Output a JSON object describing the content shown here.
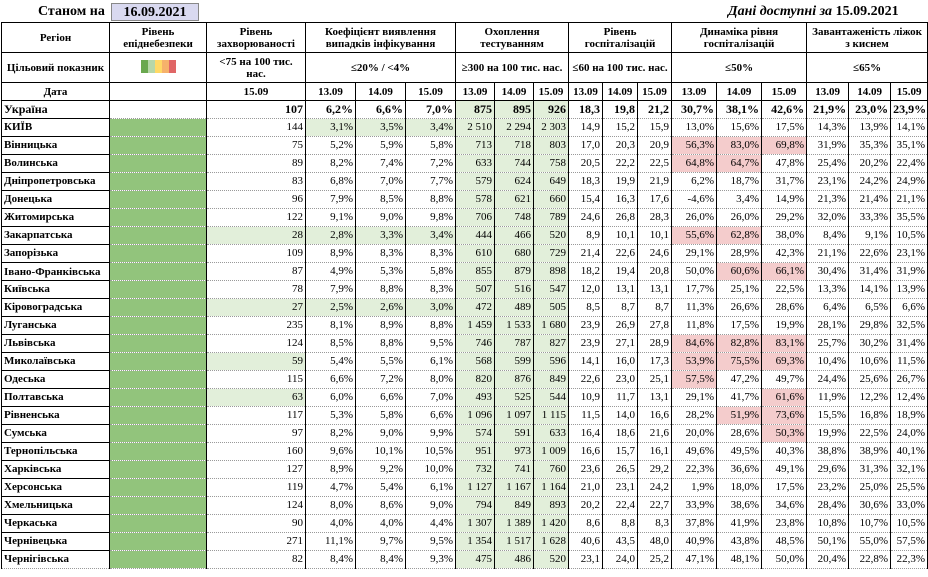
{
  "header": {
    "stanom_label": "Станом на",
    "stanom_date": "16.09.2021",
    "available_label": "Дані доступні за",
    "available_date": "15.09.2021"
  },
  "columns": {
    "region": "Регіон",
    "target": "Цільовий показник",
    "date": "Дата",
    "risk": "Рівень епіднебезпеки",
    "incidence": "Рівень захворюваності",
    "incidence_target": "<75 на 100 тис. нас.",
    "incidence_date": "15.09",
    "detection": "Коефіцієнт виявлення випадків інфікування",
    "detection_target": "≤20% / <4%",
    "testing": "Охоплення тестуванням",
    "testing_target": "≥300 на 100 тис. нас.",
    "hosp": "Рівень госпіталізацій",
    "hosp_target": "≤60 на 100 тис. нас.",
    "dyn": "Динаміка рівня госпіталізацій",
    "dyn_target": "≤50%",
    "oxy": "Завантаженість ліжок з киснем",
    "oxy_target": "≤65%",
    "d1": "13.09",
    "d2": "14.09",
    "d3": "15.09"
  },
  "risk_colors": [
    "#6aa84f",
    "#b6d7a8",
    "#ffd966",
    "#f6b26b",
    "#e06666"
  ],
  "rows": [
    {
      "region": "Україна",
      "inc": "107",
      "det": [
        "6,2%",
        "6,6%",
        "7,0%"
      ],
      "test": [
        "875",
        "895",
        "926"
      ],
      "hosp": [
        "18,3",
        "19,8",
        "21,2"
      ],
      "dyn": [
        "30,7%",
        "38,1%",
        "42,6%"
      ],
      "oxy": [
        "21,9%",
        "23,0%",
        "23,9%"
      ]
    },
    {
      "region": "КИЇВ",
      "inc": "144",
      "det": [
        "3,1%",
        "3,5%",
        "3,4%"
      ],
      "test": [
        "2 510",
        "2 294",
        "2 303"
      ],
      "hosp": [
        "14,9",
        "15,2",
        "15,9"
      ],
      "dyn": [
        "13,0%",
        "15,6%",
        "17,5%"
      ],
      "oxy": [
        "14,3%",
        "13,9%",
        "14,1%"
      ]
    },
    {
      "region": "Вінницька",
      "inc": "75",
      "det": [
        "5,2%",
        "5,9%",
        "5,8%"
      ],
      "test": [
        "713",
        "718",
        "803"
      ],
      "hosp": [
        "17,0",
        "20,3",
        "20,9"
      ],
      "dyn": [
        "56,3%",
        "83,0%",
        "69,8%"
      ],
      "oxy": [
        "31,9%",
        "35,3%",
        "35,1%"
      ]
    },
    {
      "region": "Волинська",
      "inc": "89",
      "det": [
        "8,2%",
        "7,4%",
        "7,2%"
      ],
      "test": [
        "633",
        "744",
        "758"
      ],
      "hosp": [
        "20,5",
        "22,2",
        "22,5"
      ],
      "dyn": [
        "64,8%",
        "64,7%",
        "47,8%"
      ],
      "oxy": [
        "25,4%",
        "20,2%",
        "22,4%"
      ]
    },
    {
      "region": "Дніпропетровська",
      "inc": "83",
      "det": [
        "6,8%",
        "7,0%",
        "7,7%"
      ],
      "test": [
        "579",
        "624",
        "649"
      ],
      "hosp": [
        "18,3",
        "19,9",
        "21,9"
      ],
      "dyn": [
        "6,2%",
        "18,7%",
        "31,7%"
      ],
      "oxy": [
        "23,1%",
        "24,2%",
        "24,9%"
      ]
    },
    {
      "region": "Донецька",
      "inc": "96",
      "det": [
        "7,9%",
        "8,5%",
        "8,8%"
      ],
      "test": [
        "578",
        "621",
        "660"
      ],
      "hosp": [
        "15,4",
        "16,3",
        "17,6"
      ],
      "dyn": [
        "-4,6%",
        "3,4%",
        "14,9%"
      ],
      "oxy": [
        "21,3%",
        "21,4%",
        "21,1%"
      ]
    },
    {
      "region": "Житомирська",
      "inc": "122",
      "det": [
        "9,1%",
        "9,0%",
        "9,8%"
      ],
      "test": [
        "706",
        "748",
        "789"
      ],
      "hosp": [
        "24,6",
        "26,8",
        "28,3"
      ],
      "dyn": [
        "26,0%",
        "26,0%",
        "29,2%"
      ],
      "oxy": [
        "32,0%",
        "33,3%",
        "35,5%"
      ]
    },
    {
      "region": "Закарпатська",
      "inc": "28",
      "det": [
        "2,8%",
        "3,3%",
        "3,4%"
      ],
      "test": [
        "444",
        "466",
        "520"
      ],
      "hosp": [
        "8,9",
        "10,1",
        "10,1"
      ],
      "dyn": [
        "55,6%",
        "62,8%",
        "38,0%"
      ],
      "oxy": [
        "8,4%",
        "9,1%",
        "10,5%"
      ]
    },
    {
      "region": "Запорізька",
      "inc": "109",
      "det": [
        "8,9%",
        "8,3%",
        "8,3%"
      ],
      "test": [
        "610",
        "680",
        "729"
      ],
      "hosp": [
        "21,4",
        "22,6",
        "24,6"
      ],
      "dyn": [
        "29,1%",
        "28,9%",
        "42,3%"
      ],
      "oxy": [
        "21,1%",
        "22,6%",
        "23,1%"
      ]
    },
    {
      "region": "Івано-Франківська",
      "inc": "87",
      "det": [
        "4,9%",
        "5,3%",
        "5,8%"
      ],
      "test": [
        "855",
        "879",
        "898"
      ],
      "hosp": [
        "18,2",
        "19,4",
        "20,8"
      ],
      "dyn": [
        "50,0%",
        "60,6%",
        "66,1%"
      ],
      "oxy": [
        "30,4%",
        "31,4%",
        "31,9%"
      ]
    },
    {
      "region": "Київська",
      "inc": "78",
      "det": [
        "7,9%",
        "8,8%",
        "8,3%"
      ],
      "test": [
        "507",
        "516",
        "547"
      ],
      "hosp": [
        "12,0",
        "13,1",
        "13,1"
      ],
      "dyn": [
        "17,7%",
        "25,1%",
        "22,5%"
      ],
      "oxy": [
        "13,3%",
        "14,1%",
        "13,9%"
      ]
    },
    {
      "region": "Кіровоградська",
      "inc": "27",
      "det": [
        "2,5%",
        "2,6%",
        "3,0%"
      ],
      "test": [
        "472",
        "489",
        "505"
      ],
      "hosp": [
        "8,5",
        "8,7",
        "8,7"
      ],
      "dyn": [
        "11,3%",
        "26,6%",
        "28,6%"
      ],
      "oxy": [
        "6,4%",
        "6,5%",
        "6,6%"
      ]
    },
    {
      "region": "Луганська",
      "inc": "235",
      "det": [
        "8,1%",
        "8,9%",
        "8,8%"
      ],
      "test": [
        "1 459",
        "1 533",
        "1 680"
      ],
      "hosp": [
        "23,9",
        "26,9",
        "27,8"
      ],
      "dyn": [
        "11,8%",
        "17,5%",
        "19,9%"
      ],
      "oxy": [
        "28,1%",
        "29,8%",
        "32,5%"
      ]
    },
    {
      "region": "Львівська",
      "inc": "124",
      "det": [
        "8,5%",
        "8,8%",
        "9,5%"
      ],
      "test": [
        "746",
        "787",
        "827"
      ],
      "hosp": [
        "23,9",
        "27,1",
        "28,9"
      ],
      "dyn": [
        "84,6%",
        "82,8%",
        "83,1%"
      ],
      "oxy": [
        "25,7%",
        "30,2%",
        "31,4%"
      ]
    },
    {
      "region": "Миколаївська",
      "inc": "59",
      "det": [
        "5,4%",
        "5,5%",
        "6,1%"
      ],
      "test": [
        "568",
        "599",
        "596"
      ],
      "hosp": [
        "14,1",
        "16,0",
        "17,3"
      ],
      "dyn": [
        "53,9%",
        "75,5%",
        "69,3%"
      ],
      "oxy": [
        "10,4%",
        "10,6%",
        "11,5%"
      ]
    },
    {
      "region": "Одеська",
      "inc": "115",
      "det": [
        "6,6%",
        "7,2%",
        "8,0%"
      ],
      "test": [
        "820",
        "876",
        "849"
      ],
      "hosp": [
        "22,6",
        "23,0",
        "25,1"
      ],
      "dyn": [
        "57,5%",
        "47,2%",
        "49,7%"
      ],
      "oxy": [
        "24,4%",
        "25,6%",
        "26,7%"
      ]
    },
    {
      "region": "Полтавська",
      "inc": "63",
      "det": [
        "6,0%",
        "6,6%",
        "7,0%"
      ],
      "test": [
        "493",
        "525",
        "544"
      ],
      "hosp": [
        "10,9",
        "11,7",
        "13,1"
      ],
      "dyn": [
        "29,1%",
        "41,7%",
        "61,6%"
      ],
      "oxy": [
        "11,9%",
        "12,2%",
        "12,4%"
      ]
    },
    {
      "region": "Рівненська",
      "inc": "117",
      "det": [
        "5,3%",
        "5,8%",
        "6,6%"
      ],
      "test": [
        "1 096",
        "1 097",
        "1 115"
      ],
      "hosp": [
        "11,5",
        "14,0",
        "16,6"
      ],
      "dyn": [
        "28,2%",
        "51,9%",
        "73,6%"
      ],
      "oxy": [
        "15,5%",
        "16,8%",
        "18,9%"
      ]
    },
    {
      "region": "Сумська",
      "inc": "97",
      "det": [
        "8,2%",
        "9,0%",
        "9,9%"
      ],
      "test": [
        "574",
        "591",
        "633"
      ],
      "hosp": [
        "16,4",
        "18,6",
        "21,6"
      ],
      "dyn": [
        "20,0%",
        "28,6%",
        "50,3%"
      ],
      "oxy": [
        "19,9%",
        "22,5%",
        "24,0%"
      ]
    },
    {
      "region": "Тернопільська",
      "inc": "160",
      "det": [
        "9,6%",
        "10,1%",
        "10,5%"
      ],
      "test": [
        "951",
        "973",
        "1 009"
      ],
      "hosp": [
        "16,6",
        "15,7",
        "16,1"
      ],
      "dyn": [
        "49,6%",
        "49,5%",
        "40,3%"
      ],
      "oxy": [
        "38,8%",
        "38,9%",
        "40,1%"
      ]
    },
    {
      "region": "Харківська",
      "inc": "127",
      "det": [
        "8,9%",
        "9,2%",
        "10,0%"
      ],
      "test": [
        "732",
        "741",
        "760"
      ],
      "hosp": [
        "23,6",
        "26,5",
        "29,2"
      ],
      "dyn": [
        "22,3%",
        "36,6%",
        "49,1%"
      ],
      "oxy": [
        "29,6%",
        "31,3%",
        "32,1%"
      ]
    },
    {
      "region": "Херсонська",
      "inc": "119",
      "det": [
        "4,7%",
        "5,4%",
        "6,1%"
      ],
      "test": [
        "1 127",
        "1 167",
        "1 164"
      ],
      "hosp": [
        "21,0",
        "23,1",
        "24,2"
      ],
      "dyn": [
        "1,9%",
        "18,0%",
        "17,5%"
      ],
      "oxy": [
        "23,2%",
        "25,0%",
        "25,5%"
      ]
    },
    {
      "region": "Хмельницька",
      "inc": "124",
      "det": [
        "8,0%",
        "8,6%",
        "9,0%"
      ],
      "test": [
        "794",
        "849",
        "893"
      ],
      "hosp": [
        "20,2",
        "22,4",
        "22,7"
      ],
      "dyn": [
        "33,9%",
        "38,6%",
        "34,6%"
      ],
      "oxy": [
        "28,4%",
        "30,6%",
        "33,0%"
      ]
    },
    {
      "region": "Черкаська",
      "inc": "90",
      "det": [
        "4,0%",
        "4,0%",
        "4,4%"
      ],
      "test": [
        "1 307",
        "1 389",
        "1 420"
      ],
      "hosp": [
        "8,6",
        "8,8",
        "8,3"
      ],
      "dyn": [
        "37,8%",
        "41,9%",
        "23,8%"
      ],
      "oxy": [
        "10,8%",
        "10,7%",
        "10,5%"
      ]
    },
    {
      "region": "Чернівецька",
      "inc": "271",
      "det": [
        "11,1%",
        "9,7%",
        "9,5%"
      ],
      "test": [
        "1 354",
        "1 517",
        "1 628"
      ],
      "hosp": [
        "40,6",
        "43,5",
        "48,0"
      ],
      "dyn": [
        "40,9%",
        "43,8%",
        "48,5%"
      ],
      "oxy": [
        "50,1%",
        "55,0%",
        "57,5%"
      ]
    },
    {
      "region": "Чернігівська",
      "inc": "82",
      "det": [
        "8,4%",
        "8,4%",
        "9,3%"
      ],
      "test": [
        "475",
        "486",
        "520"
      ],
      "hosp": [
        "23,1",
        "24,0",
        "25,2"
      ],
      "dyn": [
        "47,1%",
        "48,1%",
        "50,0%"
      ],
      "oxy": [
        "20,4%",
        "22,8%",
        "22,3%"
      ]
    }
  ]
}
